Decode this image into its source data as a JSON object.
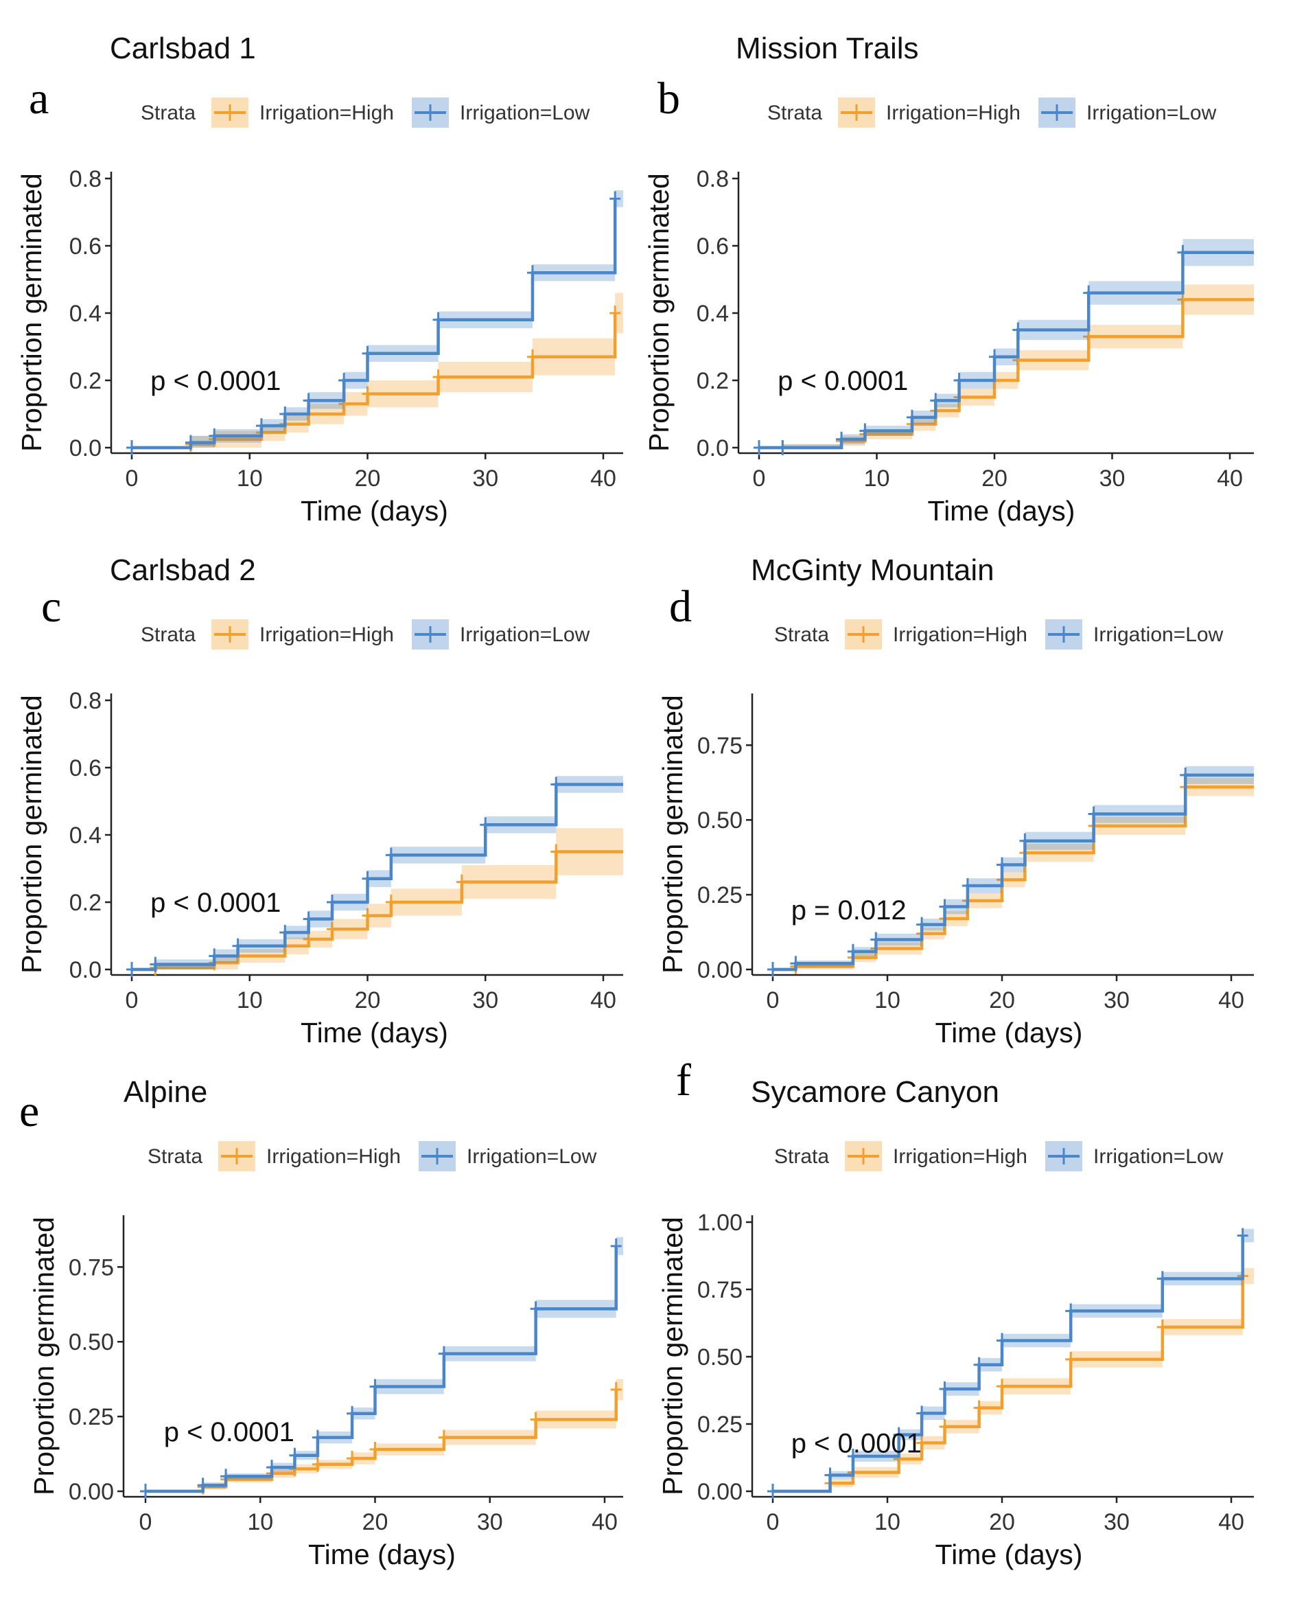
{
  "figure": {
    "legend_title": "Strata",
    "colors": {
      "high": "#F2A02D",
      "low": "#4A86C8"
    }
  },
  "chart_data": [
    {
      "type": "line",
      "panel": "a",
      "title": "Carlsbad 1",
      "xlabel": "Time (days)",
      "ylabel": "Proportion germinated",
      "xlim": [
        0,
        42
      ],
      "ylim": [
        0,
        0.8
      ],
      "xticks": [
        0,
        10,
        20,
        30,
        40
      ],
      "yticks": [
        0,
        0.2,
        0.4,
        0.6,
        0.8
      ],
      "ytick_labels": [
        "0.0",
        "0.2",
        "0.4",
        "0.6",
        "0.8"
      ],
      "pvalue": "p < 0.0001",
      "pvalue_pos": [
        1,
        0.2
      ],
      "legend": [
        "Irrigation=High",
        "Irrigation=Low"
      ],
      "series": [
        {
          "name": "Irrigation=High",
          "color": "#F2A02D",
          "x": [
            0,
            5,
            7,
            11,
            13,
            15,
            18,
            20,
            26,
            34,
            41
          ],
          "y": [
            0,
            0.01,
            0.025,
            0.045,
            0.07,
            0.1,
            0.13,
            0.16,
            0.21,
            0.27,
            0.4
          ],
          "ci": [
            0.025,
            0.025,
            0.025,
            0.025,
            0.025,
            0.03,
            0.035,
            0.04,
            0.045,
            0.055,
            0.06
          ]
        },
        {
          "name": "Irrigation=Low",
          "color": "#4A86C8",
          "x": [
            0,
            5,
            7,
            11,
            13,
            15,
            18,
            20,
            26,
            34,
            41
          ],
          "y": [
            0,
            0.015,
            0.035,
            0.065,
            0.1,
            0.14,
            0.2,
            0.28,
            0.38,
            0.52,
            0.74
          ],
          "ci": [
            0.02,
            0.02,
            0.02,
            0.02,
            0.02,
            0.025,
            0.025,
            0.025,
            0.025,
            0.025,
            0.025
          ]
        }
      ]
    },
    {
      "type": "line",
      "panel": "b",
      "title": "Mission Trails",
      "xlabel": "Time (days)",
      "ylabel": "Proportion germinated",
      "xlim": [
        0,
        42
      ],
      "ylim": [
        0,
        0.8
      ],
      "xticks": [
        0,
        10,
        20,
        30,
        40
      ],
      "yticks": [
        0,
        0.2,
        0.4,
        0.6,
        0.8
      ],
      "ytick_labels": [
        "0.0",
        "0.2",
        "0.4",
        "0.6",
        "0.8"
      ],
      "pvalue": "p < 0.0001",
      "pvalue_pos": [
        1,
        0.2
      ],
      "legend": [
        "Irrigation=High",
        "Irrigation=Low"
      ],
      "series": [
        {
          "name": "Irrigation=High",
          "color": "#F2A02D",
          "x": [
            0,
            2,
            7,
            9,
            13,
            15,
            17,
            20,
            22,
            28,
            36
          ],
          "y": [
            0,
            0,
            0.02,
            0.04,
            0.07,
            0.11,
            0.15,
            0.2,
            0.26,
            0.33,
            0.44
          ],
          "ci": [
            0.01,
            0.01,
            0.015,
            0.015,
            0.02,
            0.02,
            0.025,
            0.025,
            0.03,
            0.035,
            0.045
          ]
        },
        {
          "name": "Irrigation=Low",
          "color": "#4A86C8",
          "x": [
            0,
            2,
            7,
            9,
            13,
            15,
            17,
            20,
            22,
            28,
            36
          ],
          "y": [
            0,
            0,
            0.025,
            0.05,
            0.09,
            0.14,
            0.2,
            0.27,
            0.35,
            0.46,
            0.58
          ],
          "ci": [
            0.01,
            0.01,
            0.015,
            0.015,
            0.02,
            0.02,
            0.025,
            0.025,
            0.03,
            0.035,
            0.04
          ]
        }
      ]
    },
    {
      "type": "line",
      "panel": "c",
      "title": "Carlsbad 2",
      "xlabel": "Time (days)",
      "ylabel": "Proportion germinated",
      "xlim": [
        0,
        42
      ],
      "ylim": [
        0,
        0.8
      ],
      "xticks": [
        0,
        10,
        20,
        30,
        40
      ],
      "yticks": [
        0,
        0.2,
        0.4,
        0.6,
        0.8
      ],
      "ytick_labels": [
        "0.0",
        "0.2",
        "0.4",
        "0.6",
        "0.8"
      ],
      "pvalue": "p < 0.0001",
      "pvalue_pos": [
        1,
        0.2
      ],
      "legend": [
        "Irrigation=High",
        "Irrigation=Low"
      ],
      "series": [
        {
          "name": "Irrigation=High",
          "color": "#F2A02D",
          "x": [
            0,
            2,
            7,
            9,
            13,
            15,
            17,
            20,
            22,
            28,
            36
          ],
          "y": [
            0,
            0.005,
            0.02,
            0.04,
            0.07,
            0.09,
            0.12,
            0.16,
            0.2,
            0.26,
            0.35
          ],
          "ci": [
            0.015,
            0.015,
            0.02,
            0.02,
            0.025,
            0.025,
            0.03,
            0.035,
            0.04,
            0.05,
            0.07
          ]
        },
        {
          "name": "Irrigation=Low",
          "color": "#4A86C8",
          "x": [
            0,
            2,
            7,
            9,
            13,
            15,
            17,
            20,
            22,
            30,
            36
          ],
          "y": [
            0,
            0.015,
            0.04,
            0.07,
            0.11,
            0.15,
            0.2,
            0.27,
            0.34,
            0.43,
            0.55
          ],
          "ci": [
            0.015,
            0.015,
            0.02,
            0.02,
            0.02,
            0.025,
            0.025,
            0.025,
            0.025,
            0.025,
            0.025
          ]
        }
      ]
    },
    {
      "type": "line",
      "panel": "d",
      "title": "McGinty Mountain",
      "xlabel": "Time (days)",
      "ylabel": "Proportion germinated",
      "xlim": [
        0,
        42
      ],
      "ylim": [
        0,
        0.9
      ],
      "xticks": [
        0,
        10,
        20,
        30,
        40
      ],
      "yticks": [
        0,
        0.25,
        0.5,
        0.75
      ],
      "ytick_labels": [
        "0.00",
        "0.25",
        "0.50",
        "0.75"
      ],
      "pvalue": "p = 0.012",
      "pvalue_pos": [
        1,
        0.2
      ],
      "legend": [
        "Irrigation=High",
        "Irrigation=Low"
      ],
      "series": [
        {
          "name": "Irrigation=High",
          "color": "#F2A02D",
          "x": [
            0,
            2,
            7,
            9,
            13,
            15,
            17,
            20,
            22,
            28,
            36
          ],
          "y": [
            0,
            0.01,
            0.04,
            0.07,
            0.12,
            0.17,
            0.23,
            0.3,
            0.39,
            0.48,
            0.61
          ],
          "ci": [
            0.01,
            0.01,
            0.015,
            0.02,
            0.02,
            0.025,
            0.025,
            0.025,
            0.03,
            0.03,
            0.03
          ]
        },
        {
          "name": "Irrigation=Low",
          "color": "#4A86C8",
          "x": [
            0,
            2,
            7,
            9,
            13,
            15,
            17,
            20,
            22,
            28,
            36
          ],
          "y": [
            0,
            0.02,
            0.06,
            0.1,
            0.15,
            0.21,
            0.28,
            0.35,
            0.43,
            0.52,
            0.65
          ],
          "ci": [
            0.01,
            0.01,
            0.015,
            0.02,
            0.02,
            0.025,
            0.025,
            0.025,
            0.03,
            0.03,
            0.03
          ]
        }
      ]
    },
    {
      "type": "line",
      "panel": "e",
      "title": "Alpine",
      "xlabel": "Time (days)",
      "ylabel": "Proportion germinated",
      "xlim": [
        0,
        42
      ],
      "ylim": [
        0,
        0.9
      ],
      "xticks": [
        0,
        10,
        20,
        30,
        40
      ],
      "yticks": [
        0,
        0.25,
        0.5,
        0.75
      ],
      "ytick_labels": [
        "0.00",
        "0.25",
        "0.50",
        "0.75"
      ],
      "pvalue": "p < 0.0001",
      "pvalue_pos": [
        1,
        0.2
      ],
      "legend": [
        "Irrigation=High",
        "Irrigation=Low"
      ],
      "series": [
        {
          "name": "Irrigation=High",
          "color": "#F2A02D",
          "x": [
            0,
            5,
            7,
            11,
            13,
            15,
            18,
            20,
            26,
            34,
            41
          ],
          "y": [
            0,
            0.015,
            0.04,
            0.06,
            0.075,
            0.09,
            0.11,
            0.14,
            0.18,
            0.24,
            0.34
          ],
          "ci": [
            0.01,
            0.01,
            0.01,
            0.015,
            0.015,
            0.015,
            0.02,
            0.02,
            0.025,
            0.03,
            0.035
          ]
        },
        {
          "name": "Irrigation=Low",
          "color": "#4A86C8",
          "x": [
            0,
            5,
            7,
            11,
            13,
            15,
            18,
            20,
            26,
            34,
            41
          ],
          "y": [
            0,
            0.02,
            0.05,
            0.08,
            0.12,
            0.18,
            0.26,
            0.35,
            0.46,
            0.61,
            0.82
          ],
          "ci": [
            0.01,
            0.01,
            0.01,
            0.015,
            0.015,
            0.02,
            0.02,
            0.025,
            0.025,
            0.03,
            0.03
          ]
        }
      ]
    },
    {
      "type": "line",
      "panel": "f",
      "title": "Sycamore Canyon",
      "xlabel": "Time (days)",
      "ylabel": "Proportion germinated",
      "xlim": [
        0,
        42
      ],
      "ylim": [
        0,
        1.0
      ],
      "xticks": [
        0,
        10,
        20,
        30,
        40
      ],
      "yticks": [
        0,
        0.25,
        0.5,
        0.75,
        1.0
      ],
      "ytick_labels": [
        "0.00",
        "0.25",
        "0.50",
        "0.75",
        "1.00"
      ],
      "pvalue": "p < 0.0001",
      "pvalue_pos": [
        1,
        0.18
      ],
      "legend": [
        "Irrigation=High",
        "Irrigation=Low"
      ],
      "series": [
        {
          "name": "Irrigation=High",
          "color": "#F2A02D",
          "x": [
            0,
            5,
            7,
            11,
            13,
            15,
            18,
            20,
            26,
            34,
            41
          ],
          "y": [
            0,
            0.03,
            0.07,
            0.12,
            0.18,
            0.24,
            0.31,
            0.39,
            0.49,
            0.61,
            0.8
          ],
          "ci": [
            0.015,
            0.015,
            0.02,
            0.02,
            0.025,
            0.025,
            0.025,
            0.03,
            0.03,
            0.03,
            0.03
          ]
        },
        {
          "name": "Irrigation=Low",
          "color": "#4A86C8",
          "x": [
            0,
            5,
            7,
            11,
            13,
            15,
            18,
            20,
            26,
            34,
            41
          ],
          "y": [
            0,
            0.06,
            0.13,
            0.21,
            0.29,
            0.38,
            0.47,
            0.56,
            0.67,
            0.79,
            0.95
          ],
          "ci": [
            0.015,
            0.015,
            0.02,
            0.02,
            0.025,
            0.025,
            0.025,
            0.025,
            0.025,
            0.025,
            0.025
          ]
        }
      ]
    }
  ]
}
